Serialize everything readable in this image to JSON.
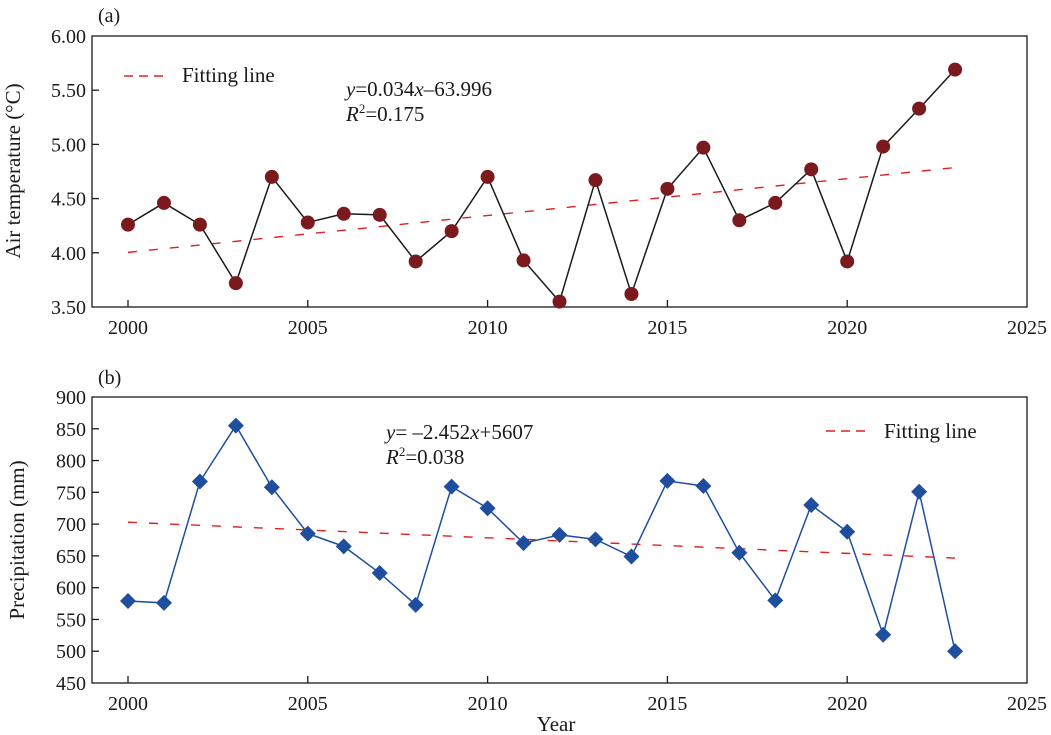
{
  "chart_data": [
    {
      "type": "line",
      "panel_label": "(a)",
      "title": "",
      "xlabel": "",
      "ylabel": "Air temperature (°C)",
      "xlim": [
        1998,
        2025
      ],
      "ylim": [
        3.5,
        6.0
      ],
      "xticks": [
        2000,
        2005,
        2010,
        2015,
        2020,
        2025
      ],
      "yticks": [
        "3.50",
        "4.00",
        "4.50",
        "5.00",
        "5.50",
        "6.00"
      ],
      "ytick_values": [
        3.5,
        4.0,
        4.5,
        5.0,
        5.5,
        6.0
      ],
      "grid": false,
      "x": [
        2000,
        2001,
        2002,
        2003,
        2004,
        2005,
        2006,
        2007,
        2008,
        2009,
        2010,
        2011,
        2012,
        2013,
        2014,
        2015,
        2016,
        2017,
        2018,
        2019,
        2020,
        2021,
        2022,
        2023
      ],
      "series": [
        {
          "name": "Air temperature",
          "marker": "circle",
          "color": "#7a1a1e",
          "line_color": "#1a1a1a",
          "values": [
            4.26,
            4.46,
            4.26,
            3.72,
            4.7,
            4.28,
            4.36,
            4.35,
            3.92,
            4.2,
            4.7,
            3.93,
            3.55,
            4.67,
            3.62,
            4.59,
            4.97,
            4.3,
            4.46,
            4.77,
            3.92,
            4.98,
            5.33,
            5.69
          ]
        }
      ],
      "fit": {
        "slope": 0.034,
        "intercept": -63.996,
        "x_range": [
          2000,
          2023
        ],
        "color": "#e02020"
      },
      "legend": {
        "label": "Fitting line",
        "position": "top-left"
      },
      "annotation": {
        "equation_prefix": "y",
        "equation_body": "=0.034",
        "equation_var": "x",
        "equation_tail": "–63.996",
        "r2_prefix": "R",
        "r2_sup": "2",
        "r2_body": "=0.175"
      }
    },
    {
      "type": "line",
      "panel_label": "(b)",
      "title": "",
      "xlabel": "Year",
      "ylabel": "Precipitation (mm)",
      "xlim": [
        1998,
        2025
      ],
      "ylim": [
        450,
        900
      ],
      "xticks": [
        2000,
        2005,
        2010,
        2015,
        2020,
        2025
      ],
      "yticks": [
        "450",
        "500",
        "550",
        "600",
        "650",
        "700",
        "750",
        "800",
        "850",
        "900"
      ],
      "ytick_values": [
        450,
        500,
        550,
        600,
        650,
        700,
        750,
        800,
        850,
        900
      ],
      "grid": false,
      "x": [
        2000,
        2001,
        2002,
        2003,
        2004,
        2005,
        2006,
        2007,
        2008,
        2009,
        2010,
        2011,
        2012,
        2013,
        2014,
        2015,
        2016,
        2017,
        2018,
        2019,
        2020,
        2021,
        2022,
        2023
      ],
      "series": [
        {
          "name": "Precipitation",
          "marker": "diamond",
          "color": "#1f4e9f",
          "line_color": "#1f4e9f",
          "values": [
            579,
            576,
            767,
            855,
            758,
            685,
            665,
            623,
            573,
            759,
            725,
            670,
            683,
            676,
            649,
            768,
            760,
            655,
            580,
            730,
            688,
            526,
            751,
            500
          ]
        }
      ],
      "fit": {
        "slope": -2.452,
        "intercept": 5607,
        "x_range": [
          2000,
          2023
        ],
        "color": "#e02020"
      },
      "legend": {
        "label": "Fitting line",
        "position": "top-right"
      },
      "annotation": {
        "equation_prefix": "y",
        "equation_body": "= –2.452",
        "equation_var": "x",
        "equation_tail": "+5607",
        "r2_prefix": "R",
        "r2_sup": "2",
        "r2_body": "=0.038"
      }
    }
  ]
}
